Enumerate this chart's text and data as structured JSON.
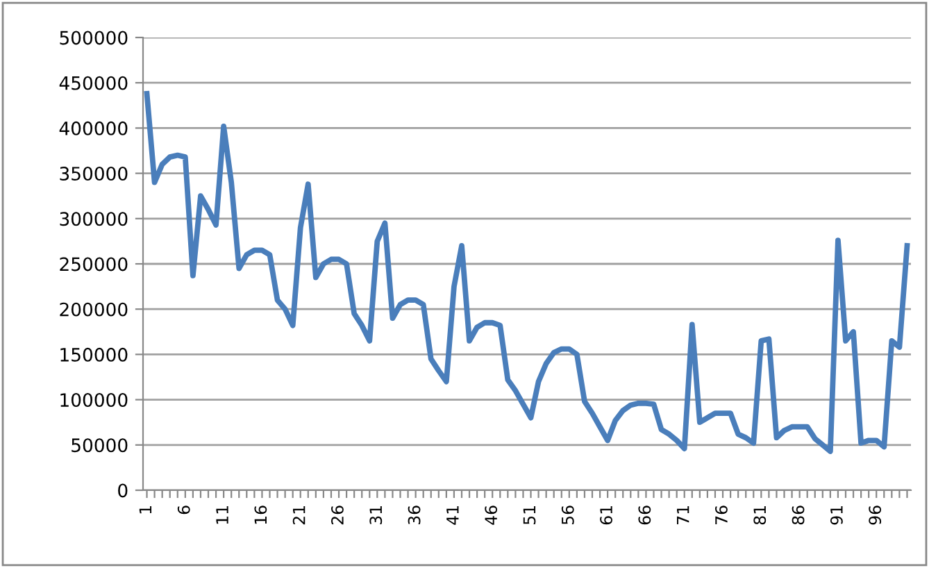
{
  "chart_data": {
    "type": "line",
    "categories": [
      "1",
      null,
      null,
      null,
      null,
      "6",
      null,
      null,
      null,
      null,
      "11",
      null,
      null,
      null,
      null,
      "16",
      null,
      null,
      null,
      null,
      "21",
      null,
      null,
      null,
      null,
      "26",
      null,
      null,
      null,
      null,
      "31",
      null,
      null,
      null,
      null,
      "36",
      null,
      null,
      null,
      null,
      "41",
      null,
      null,
      null,
      null,
      "46",
      null,
      null,
      null,
      null,
      "51",
      null,
      null,
      null,
      null,
      "56",
      null,
      null,
      null,
      null,
      "61",
      null,
      null,
      null,
      null,
      "66",
      null,
      null,
      null,
      null,
      "71",
      null,
      null,
      null,
      null,
      "76",
      null,
      null,
      null,
      null,
      "81",
      null,
      null,
      null,
      null,
      "86",
      null,
      null,
      null,
      null,
      "91",
      null,
      null,
      null,
      null,
      "96",
      null,
      null,
      null,
      null
    ],
    "series": [
      {
        "color": "#4a7ebb",
        "values": [
          438000,
          340000,
          360000,
          368000,
          370000,
          368000,
          237000,
          325000,
          310000,
          293000,
          402000,
          340000,
          245000,
          260000,
          265000,
          265000,
          260000,
          210000,
          200000,
          182000,
          290000,
          338000,
          235000,
          250000,
          255000,
          255000,
          250000,
          195000,
          182000,
          165000,
          275000,
          295000,
          190000,
          205000,
          210000,
          210000,
          205000,
          145000,
          132000,
          120000,
          225000,
          270000,
          165000,
          180000,
          185000,
          185000,
          182000,
          122000,
          110000,
          95000,
          80000,
          120000,
          140000,
          152000,
          156000,
          156000,
          150000,
          98000,
          85000,
          70000,
          55000,
          77000,
          88000,
          94000,
          96000,
          96000,
          95000,
          67000,
          62000,
          55000,
          46000,
          183000,
          75000,
          80000,
          85000,
          85000,
          85000,
          62000,
          58000,
          52000,
          165000,
          167000,
          58000,
          66000,
          70000,
          70000,
          70000,
          57000,
          50000,
          43000,
          276000,
          165000,
          175000,
          52000,
          55000,
          55000,
          48000,
          165000,
          158000,
          270000
        ]
      }
    ],
    "ylim": [
      0,
      500000
    ],
    "yticks": [
      0,
      50000,
      100000,
      150000,
      200000,
      250000,
      300000,
      350000,
      400000,
      450000,
      500000
    ],
    "grid": "y",
    "legend": false,
    "marker": "none",
    "line_style": "solid"
  }
}
